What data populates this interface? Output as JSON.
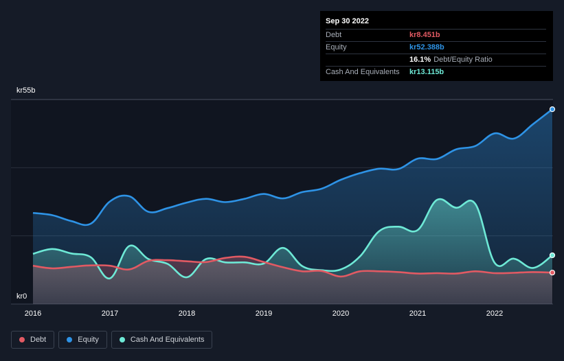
{
  "colors": {
    "debt": "#e25a63",
    "equity": "#2e93e6",
    "cash": "#6ee9d6",
    "gridline": "#2a303c",
    "background": "#151b27"
  },
  "tooltip": {
    "date": "Sep 30 2022",
    "debt_label": "Debt",
    "debt_value": "kr8.451b",
    "equity_label": "Equity",
    "equity_value": "kr52.388b",
    "ratio_value": "16.1%",
    "ratio_label": "Debt/Equity Ratio",
    "cash_label": "Cash And Equivalents",
    "cash_value": "kr13.115b"
  },
  "legend": {
    "debt": "Debt",
    "equity": "Equity",
    "cash": "Cash And Equivalents"
  },
  "chart_data": {
    "type": "area",
    "title": "",
    "xlabel": "",
    "ylabel": "",
    "y_top_label": "kr55b",
    "y_bottom_label": "kr0",
    "ylim": [
      0,
      55
    ],
    "xlim": [
      2016.0,
      2022.75
    ],
    "x_tick_labels": [
      "2016",
      "2017",
      "2018",
      "2019",
      "2020",
      "2021",
      "2022"
    ],
    "x_ticks": [
      2016,
      2017,
      2018,
      2019,
      2020,
      2021,
      2022
    ],
    "series": [
      {
        "name": "Equity",
        "key": "equity",
        "x": [
          2016.0,
          2016.25,
          2016.5,
          2016.75,
          2017.0,
          2017.25,
          2017.5,
          2017.75,
          2018.0,
          2018.25,
          2018.5,
          2018.75,
          2019.0,
          2019.25,
          2019.5,
          2019.75,
          2020.0,
          2020.25,
          2020.5,
          2020.75,
          2021.0,
          2021.25,
          2021.5,
          2021.75,
          2022.0,
          2022.25,
          2022.5,
          2022.75
        ],
        "values": [
          24.5,
          23.9,
          22.3,
          21.6,
          27.6,
          29.0,
          24.8,
          25.8,
          27.3,
          28.3,
          27.4,
          28.3,
          29.6,
          28.4,
          30.1,
          31.0,
          33.4,
          35.2,
          36.4,
          36.3,
          39.1,
          39.0,
          41.6,
          42.5,
          45.9,
          44.5,
          48.4,
          52.388
        ]
      },
      {
        "name": "Cash And Equivalents",
        "key": "cash",
        "x": [
          2016.0,
          2016.25,
          2016.5,
          2016.75,
          2017.0,
          2017.25,
          2017.5,
          2017.75,
          2018.0,
          2018.25,
          2018.5,
          2018.75,
          2019.0,
          2019.25,
          2019.5,
          2019.75,
          2020.0,
          2020.25,
          2020.5,
          2020.75,
          2021.0,
          2021.25,
          2021.5,
          2021.75,
          2022.0,
          2022.25,
          2022.5,
          2022.75
        ],
        "values": [
          13.5,
          14.8,
          13.6,
          12.6,
          6.9,
          15.6,
          12.1,
          10.8,
          7.2,
          12.1,
          11.2,
          11.2,
          10.9,
          15.1,
          10.2,
          9.1,
          9.3,
          12.8,
          19.6,
          20.8,
          19.9,
          28.0,
          25.9,
          26.9,
          11.1,
          12.2,
          9.7,
          13.115
        ]
      },
      {
        "name": "Debt",
        "key": "debt",
        "x": [
          2016.0,
          2016.25,
          2016.5,
          2016.75,
          2017.0,
          2017.25,
          2017.5,
          2017.75,
          2018.0,
          2018.25,
          2018.5,
          2018.75,
          2019.0,
          2019.25,
          2019.5,
          2019.75,
          2020.0,
          2020.25,
          2020.5,
          2020.75,
          2021.0,
          2021.25,
          2021.5,
          2021.75,
          2022.0,
          2022.25,
          2022.5,
          2022.75
        ],
        "values": [
          10.3,
          9.6,
          10.0,
          10.4,
          10.3,
          9.3,
          11.6,
          11.8,
          11.5,
          11.3,
          12.4,
          12.7,
          11.3,
          9.9,
          8.8,
          8.9,
          7.4,
          8.8,
          8.8,
          8.6,
          8.2,
          8.3,
          8.2,
          8.8,
          8.3,
          8.4,
          8.6,
          8.451
        ]
      }
    ]
  }
}
